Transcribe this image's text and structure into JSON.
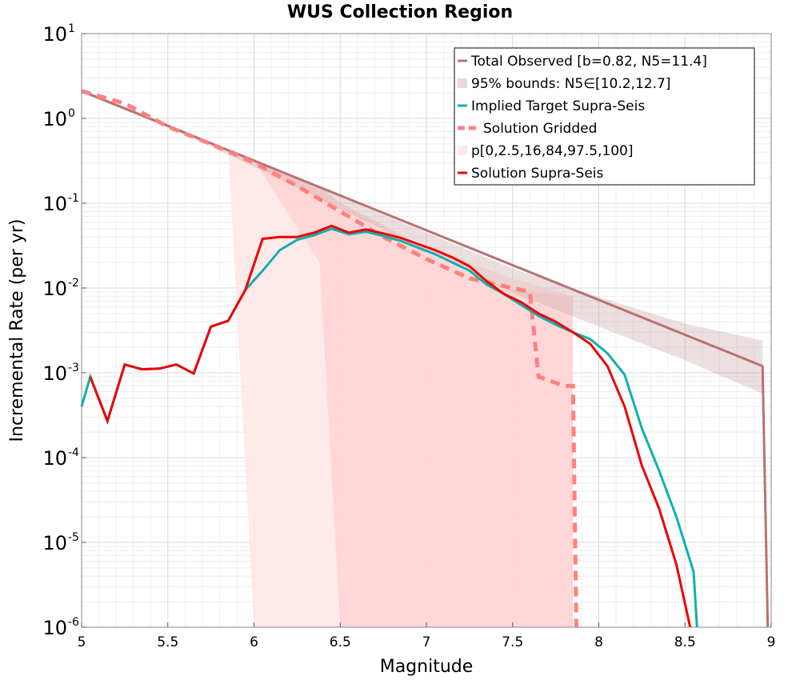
{
  "chart_data": {
    "type": "line",
    "title": "WUS Collection Region",
    "xlabel": "Magnitude",
    "ylabel": "Incremental Rate (per yr)",
    "xlim": [
      5,
      9
    ],
    "ylim": [
      1e-06,
      10
    ],
    "yscale": "log",
    "grid": true,
    "legend_position": "top-right",
    "x_ticks": [
      "5",
      "5.5",
      "6",
      "6.5",
      "7",
      "7.5",
      "8",
      "8.5",
      "9"
    ],
    "y_ticks": [
      {
        "base": "10",
        "exp": "-6"
      },
      {
        "base": "10",
        "exp": "-5"
      },
      {
        "base": "10",
        "exp": "-4"
      },
      {
        "base": "10",
        "exp": "-3"
      },
      {
        "base": "10",
        "exp": "-2"
      },
      {
        "base": "10",
        "exp": "-1"
      },
      {
        "base": "10",
        "exp": "0"
      },
      {
        "base": "10",
        "exp": "1"
      }
    ],
    "colors": {
      "total_observed": "#b87272",
      "total_band": "#e8d7d7",
      "implied_target": "#10b0b0",
      "solution_gridded": "#ff8080",
      "percentile_light": "#ffe8e8",
      "percentile_mid": "#ffd0d0",
      "solution_supra": "#ee0000"
    },
    "legend": [
      {
        "key": "total_observed",
        "label": "Total Observed [b=0.82, N5=11.4]"
      },
      {
        "key": "bounds",
        "label": "95% bounds: N5∈[10.2,12.7]"
      },
      {
        "key": "implied_target",
        "label": "Implied Target Supra-Seis"
      },
      {
        "key": "solution_gridded",
        "label": "Solution Gridded"
      },
      {
        "key": "percentiles",
        "label": "p[0,2.5,16,84,97.5,100]"
      },
      {
        "key": "solution_supra",
        "label": "Solution Supra-Seis"
      }
    ],
    "series": [
      {
        "key": "total_observed",
        "x": [
          5.0,
          8.95,
          8.98
        ],
        "y": [
          2.1,
          0.0012,
          1e-06
        ]
      },
      {
        "key": "total_band",
        "x": [
          5.0,
          5.5,
          6.0,
          6.5,
          7.0,
          7.5,
          8.0,
          8.5,
          8.95
        ],
        "upper": [
          2.2,
          0.86,
          0.32,
          0.12,
          0.045,
          0.017,
          0.0078,
          0.0038,
          0.0024
        ],
        "lower": [
          2.0,
          0.79,
          0.27,
          0.085,
          0.028,
          0.0088,
          0.0035,
          0.0014,
          0.00057
        ]
      },
      {
        "key": "percentile_light",
        "x": [
          5.0,
          5.5,
          5.85,
          6.0,
          6.25,
          6.5,
          7.0,
          7.5,
          7.85
        ],
        "upper": [
          2.1,
          0.9,
          0.45,
          0.34,
          0.2,
          0.1,
          0.03,
          0.013,
          0.008
        ],
        "lower": [
          2.1,
          0.9,
          0.45,
          1e-06,
          1e-06,
          1e-06,
          1e-06,
          1e-06,
          1e-06
        ]
      },
      {
        "key": "percentile_mid",
        "x": [
          5.0,
          5.5,
          6.0,
          6.38,
          6.5,
          6.75,
          7.0,
          7.25,
          7.5,
          7.85
        ],
        "upper": [
          2.1,
          0.88,
          0.32,
          0.16,
          0.1,
          0.055,
          0.026,
          0.015,
          0.0095,
          0.008
        ],
        "lower": [
          2.1,
          0.88,
          0.32,
          0.02,
          1e-06,
          1e-06,
          1e-06,
          1e-06,
          1e-06,
          1e-06
        ]
      },
      {
        "key": "solution_gridded",
        "x": [
          5.0,
          5.25,
          5.5,
          5.75,
          6.0,
          6.25,
          6.5,
          6.75,
          7.0,
          7.25,
          7.5,
          7.6,
          7.65,
          7.8,
          7.85,
          7.87
        ],
        "y": [
          2.1,
          1.5,
          0.8,
          0.5,
          0.3,
          0.16,
          0.08,
          0.04,
          0.022,
          0.013,
          0.01,
          0.009,
          0.0009,
          0.0007,
          0.0007,
          1e-06
        ]
      },
      {
        "key": "implied_target",
        "x": [
          5.0,
          5.05,
          5.15,
          5.25,
          5.35,
          5.45,
          5.55,
          5.65,
          5.75,
          5.85,
          5.95,
          6.05,
          6.15,
          6.25,
          6.35,
          6.45,
          6.55,
          6.65,
          6.75,
          6.85,
          6.95,
          7.05,
          7.15,
          7.25,
          7.35,
          7.45,
          7.55,
          7.65,
          7.75,
          7.85,
          7.95,
          8.05,
          8.15,
          8.25,
          8.35,
          8.45,
          8.55,
          8.57
        ],
        "y": [
          0.0004,
          0.0009,
          0.00027,
          0.00125,
          0.0011,
          0.00112,
          0.00125,
          0.00098,
          0.0035,
          0.0041,
          0.0095,
          0.016,
          0.028,
          0.037,
          0.042,
          0.05,
          0.043,
          0.046,
          0.041,
          0.036,
          0.03,
          0.025,
          0.02,
          0.016,
          0.011,
          0.0085,
          0.0063,
          0.0047,
          0.0037,
          0.003,
          0.0025,
          0.0017,
          0.00095,
          0.00022,
          7e-05,
          2e-05,
          4.5e-06,
          1e-06
        ]
      },
      {
        "key": "solution_supra",
        "x": [
          5.05,
          5.15,
          5.25,
          5.35,
          5.45,
          5.55,
          5.65,
          5.75,
          5.85,
          5.95,
          6.05,
          6.15,
          6.25,
          6.35,
          6.45,
          6.55,
          6.65,
          6.75,
          6.85,
          6.95,
          7.05,
          7.15,
          7.25,
          7.35,
          7.45,
          7.55,
          7.65,
          7.75,
          7.85,
          7.95,
          8.05,
          8.15,
          8.25,
          8.35,
          8.45,
          8.53
        ],
        "y": [
          0.0009,
          0.00027,
          0.00125,
          0.0011,
          0.00112,
          0.00125,
          0.00098,
          0.0035,
          0.0041,
          0.0095,
          0.038,
          0.04,
          0.04,
          0.045,
          0.054,
          0.045,
          0.049,
          0.044,
          0.039,
          0.033,
          0.028,
          0.023,
          0.018,
          0.012,
          0.0085,
          0.0068,
          0.005,
          0.004,
          0.003,
          0.0022,
          0.0012,
          0.0004,
          8e-05,
          2.5e-05,
          5.5e-06,
          1e-06
        ]
      }
    ]
  }
}
